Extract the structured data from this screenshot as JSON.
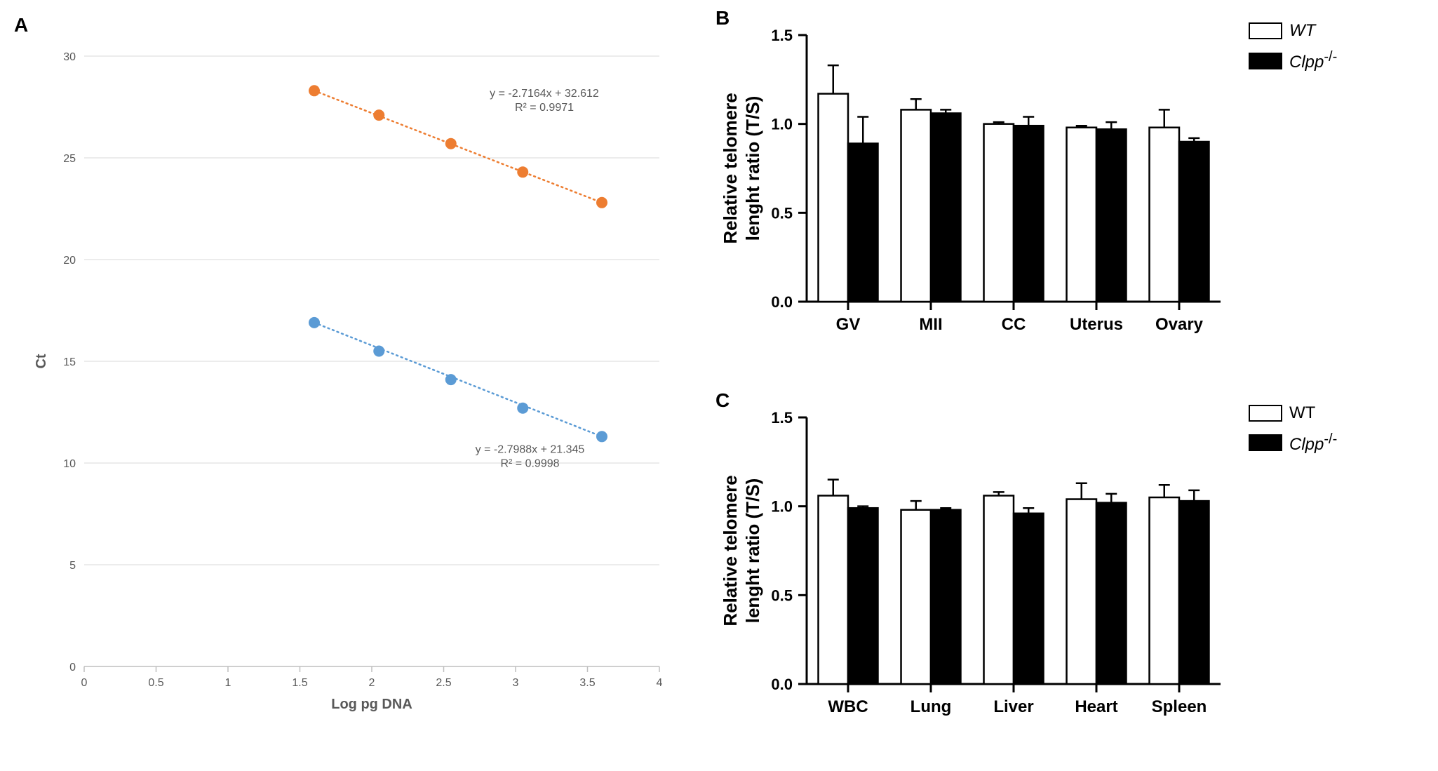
{
  "panelA": {
    "label": "A",
    "type": "scatter-line",
    "xlabel": "Log pg DNA",
    "ylabel": "Ct",
    "label_fontsize": 20,
    "tick_fontsize": 16,
    "xlim": [
      0,
      4
    ],
    "ylim": [
      0,
      30
    ],
    "xtick_step": 0.5,
    "ytick_step": 5,
    "background_color": "#ffffff",
    "grid_color": "#d9d9d9",
    "axis_color": "#bfbfbf",
    "tick_color": "#595959",
    "series": [
      {
        "name": "orange-series",
        "color": "#ed7d31",
        "marker": "circle",
        "marker_size": 10,
        "line_dash": "2,5",
        "line_width": 2.5,
        "points": [
          {
            "x": 1.6,
            "y": 28.3
          },
          {
            "x": 2.05,
            "y": 27.1
          },
          {
            "x": 2.55,
            "y": 25.7
          },
          {
            "x": 3.05,
            "y": 24.3
          },
          {
            "x": 3.6,
            "y": 22.8
          }
        ],
        "equation_line1": "y = -2.7164x + 32.612",
        "equation_line2": "R² = 0.9971",
        "equation_x": 3.2,
        "equation_y": 28.0
      },
      {
        "name": "blue-series",
        "color": "#5b9bd5",
        "marker": "circle",
        "marker_size": 10,
        "line_dash": "2,5",
        "line_width": 2.5,
        "points": [
          {
            "x": 1.6,
            "y": 16.9
          },
          {
            "x": 2.05,
            "y": 15.5
          },
          {
            "x": 2.55,
            "y": 14.1
          },
          {
            "x": 3.05,
            "y": 12.7
          },
          {
            "x": 3.6,
            "y": 11.3
          }
        ],
        "equation_line1": "y = -2.7988x + 21.345",
        "equation_line2": "R² = 0.9998",
        "equation_x": 3.1,
        "equation_y": 10.5
      }
    ]
  },
  "panelB": {
    "label": "B",
    "type": "bar",
    "ylabel_line1": "Relative telomere",
    "ylabel_line2": "lenght ratio (T/S)",
    "label_fontsize": 26,
    "tick_fontsize": 22,
    "xtick_fontsize": 24,
    "ylim": [
      0,
      1.5
    ],
    "ytick_step": 0.5,
    "categories": [
      "GV",
      "MII",
      "CC",
      "Uterus",
      "Ovary"
    ],
    "bar_width": 0.36,
    "axis_color": "#000000",
    "axis_width": 3,
    "groups": [
      {
        "name": "WT",
        "label_html": "WT",
        "italic": true,
        "fill": "#ffffff",
        "stroke": "#000000"
      },
      {
        "name": "Clpp",
        "label_html": "Clpp",
        "superscript": "-/-",
        "italic": true,
        "fill": "#000000",
        "stroke": "#000000"
      }
    ],
    "data": {
      "WT": {
        "values": [
          1.17,
          1.08,
          1.0,
          0.98,
          0.98
        ],
        "errors": [
          0.16,
          0.06,
          0.01,
          0.01,
          0.1
        ]
      },
      "Clpp": {
        "values": [
          0.89,
          1.06,
          0.99,
          0.97,
          0.9
        ],
        "errors": [
          0.15,
          0.02,
          0.05,
          0.04,
          0.02
        ]
      }
    }
  },
  "panelC": {
    "label": "C",
    "type": "bar",
    "ylabel_line1": "Relative telomere",
    "ylabel_line2": "lenght ratio (T/S)",
    "label_fontsize": 26,
    "tick_fontsize": 22,
    "xtick_fontsize": 24,
    "ylim": [
      0,
      1.5
    ],
    "ytick_step": 0.5,
    "categories": [
      "WBC",
      "Lung",
      "Liver",
      "Heart",
      "Spleen"
    ],
    "bar_width": 0.36,
    "axis_color": "#000000",
    "axis_width": 3,
    "groups": [
      {
        "name": "WT",
        "label_html": "WT",
        "italic": false,
        "fill": "#ffffff",
        "stroke": "#000000"
      },
      {
        "name": "Clpp",
        "label_html": "Clpp",
        "superscript": "-/-",
        "italic": true,
        "fill": "#000000",
        "stroke": "#000000"
      }
    ],
    "data": {
      "WT": {
        "values": [
          1.06,
          0.98,
          1.06,
          1.04,
          1.05
        ],
        "errors": [
          0.09,
          0.05,
          0.02,
          0.09,
          0.07
        ]
      },
      "Clpp": {
        "values": [
          0.99,
          0.98,
          0.96,
          1.02,
          1.03
        ],
        "errors": [
          0.01,
          0.01,
          0.03,
          0.05,
          0.06
        ]
      }
    }
  }
}
